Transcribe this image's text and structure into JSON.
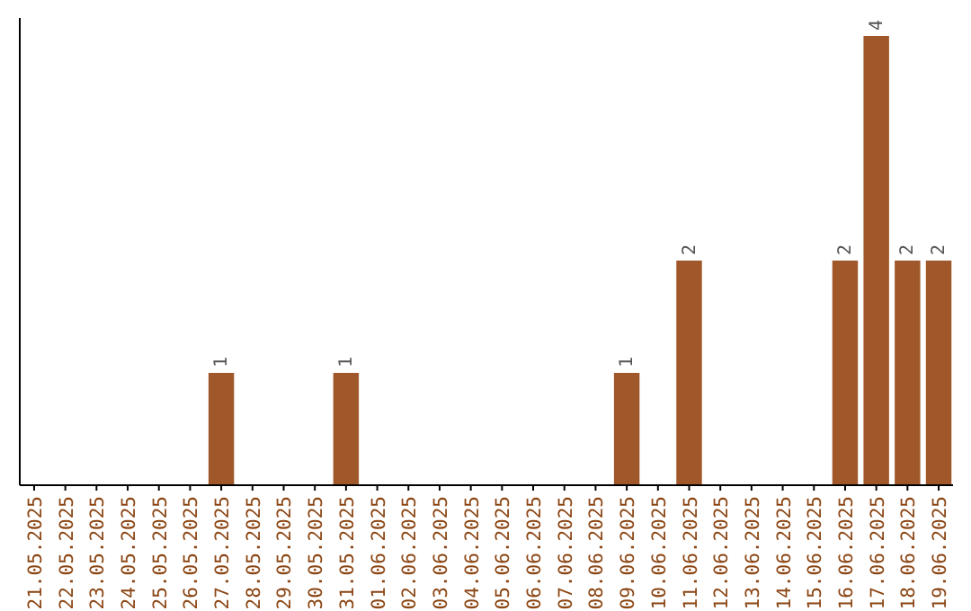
{
  "chart_data": {
    "type": "bar",
    "categories": [
      "21.05.2025",
      "22.05.2025",
      "23.05.2025",
      "24.05.2025",
      "25.05.2025",
      "26.05.2025",
      "27.05.2025",
      "28.05.2025",
      "29.05.2025",
      "30.05.2025",
      "31.05.2025",
      "01.06.2025",
      "02.06.2025",
      "03.06.2025",
      "04.06.2025",
      "05.06.2025",
      "06.06.2025",
      "07.06.2025",
      "08.06.2025",
      "09.06.2025",
      "10.06.2025",
      "11.06.2025",
      "12.06.2025",
      "13.06.2025",
      "14.06.2025",
      "15.06.2025",
      "16.06.2025",
      "17.06.2025",
      "18.06.2025",
      "19.06.2025"
    ],
    "values": [
      0,
      0,
      0,
      0,
      0,
      0,
      1,
      0,
      0,
      0,
      1,
      0,
      0,
      0,
      0,
      0,
      0,
      0,
      0,
      1,
      0,
      2,
      0,
      0,
      0,
      0,
      2,
      4,
      2,
      2
    ],
    "value_labels": [
      null,
      null,
      null,
      null,
      null,
      null,
      "1",
      null,
      null,
      null,
      "1",
      null,
      null,
      null,
      null,
      null,
      null,
      null,
      null,
      "1",
      null,
      "2",
      null,
      null,
      null,
      null,
      "2",
      "4",
      "2",
      "2"
    ],
    "color": "#a0582a",
    "ylim": [
      0,
      4
    ],
    "tick_labels": "x"
  }
}
